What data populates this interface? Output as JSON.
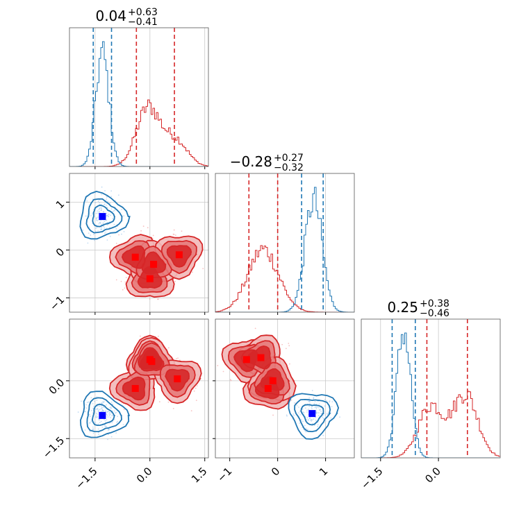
{
  "chart_data": {
    "type": "corner",
    "parameters": [
      {
        "id": "p1",
        "title_value": "0.04",
        "title_plus": "+0.63",
        "title_minus": "−0.41",
        "ticks": [
          {
            "v": -1.5,
            "label": "−1.5"
          },
          {
            "v": 0.0,
            "label": "0.0"
          },
          {
            "v": 1.5,
            "label": "1.5"
          }
        ]
      },
      {
        "id": "p2",
        "title_value": "−0.28",
        "title_plus": "+0.27",
        "title_minus": "−0.32",
        "ticks": [
          {
            "v": -1,
            "label": "−1"
          },
          {
            "v": 0,
            "label": "0"
          },
          {
            "v": 1,
            "label": "1"
          }
        ]
      },
      {
        "id": "p3",
        "title_value": "0.25",
        "title_plus": "+0.38",
        "title_minus": "−0.46",
        "ticks": [
          {
            "v": -1.5,
            "label": "−1.5"
          },
          {
            "v": 0.0,
            "label": "0.0"
          }
        ]
      }
    ],
    "ranges": [
      [
        -2.2,
        1.6
      ],
      [
        -1.3,
        1.6
      ],
      [
        -2.0,
        1.6
      ]
    ],
    "series": [
      {
        "color": "#d62728",
        "marker_color": "#ff0000",
        "quantiles": [
          [
            -0.37,
            0.67
          ],
          [
            -0.6,
            0.0
          ],
          [
            -0.3,
            0.75
          ]
        ],
        "modes": [
          [
            -0.4,
            -0.15
          ],
          [
            0.0,
            -0.6
          ],
          [
            0.1,
            -0.3
          ],
          [
            0.8,
            -0.1
          ]
        ],
        "modes_p3": [
          [
            -0.4,
            -0.2
          ],
          [
            0.0,
            0.55
          ],
          [
            0.05,
            0.5
          ],
          [
            0.75,
            0.05
          ]
        ],
        "modes_p2p3": [
          [
            -0.65,
            0.55
          ],
          [
            -0.35,
            0.6
          ],
          [
            -0.2,
            -0.2
          ],
          [
            -0.1,
            0.0
          ]
        ],
        "hist_p1": {
          "center": 0.1,
          "spread": 0.5,
          "peaks": [
            [
              -0.05,
              1.0
            ],
            [
              0.7,
              0.45
            ]
          ]
        },
        "hist_p2": {
          "peaks": [
            [
              -0.3,
              0.7
            ]
          ]
        },
        "hist_p3": {
          "peaks": [
            [
              -0.2,
              0.45
            ],
            [
              0.7,
              0.55
            ]
          ]
        }
      },
      {
        "color": "#1f77b4",
        "marker_color": "#0000ff",
        "quantiles": [
          [
            -1.55,
            -1.05
          ],
          [
            0.5,
            0.95
          ],
          [
            -1.2,
            -0.6
          ]
        ],
        "modes": [
          [
            -1.3,
            0.7
          ]
        ],
        "modes_p3": [
          [
            -1.3,
            -0.9
          ]
        ],
        "modes_p2p3": [
          [
            0.72,
            -0.85
          ]
        ],
        "hist_p1": {
          "peaks": [
            [
              -1.3,
              1.0
            ]
          ]
        },
        "hist_p2": {
          "peaks": [
            [
              0.75,
              0.95
            ]
          ]
        },
        "hist_p3": {
          "peaks": [
            [
              -0.9,
              0.9
            ]
          ]
        }
      }
    ],
    "grid": true
  }
}
